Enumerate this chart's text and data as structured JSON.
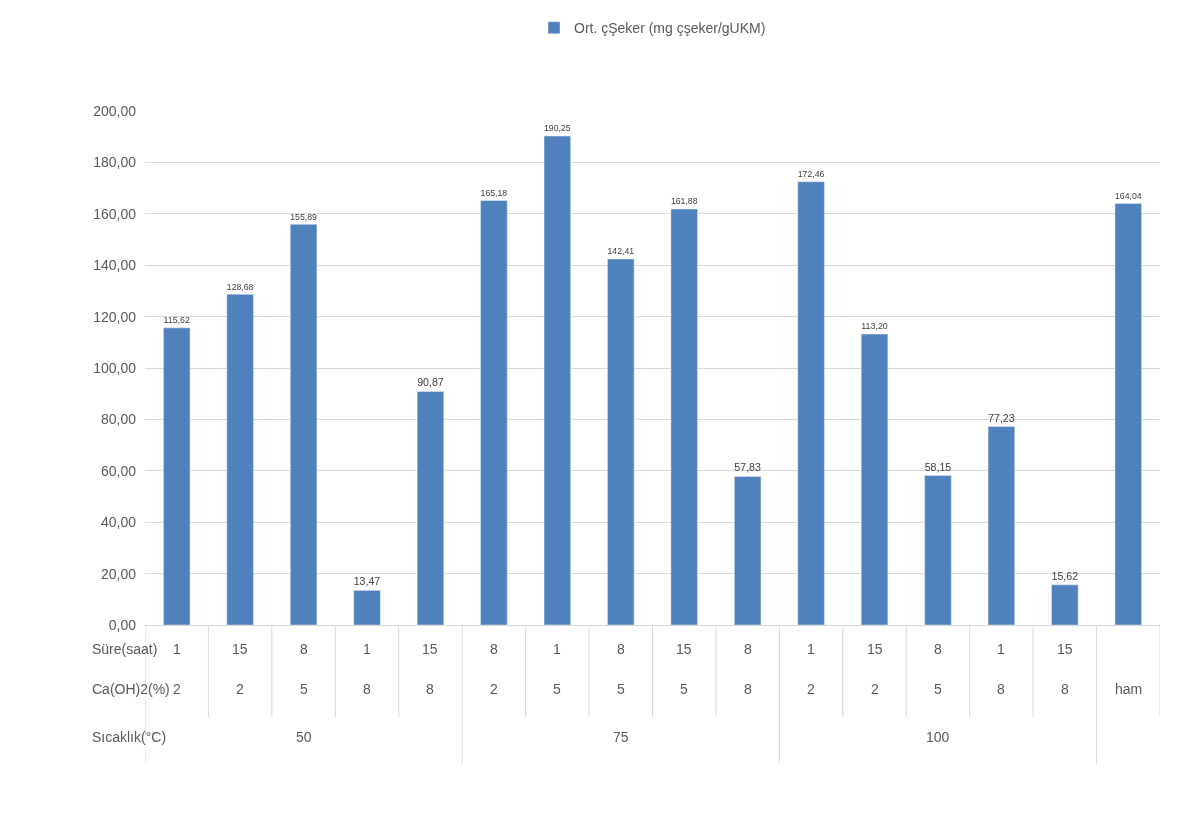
{
  "chart_data": {
    "type": "bar",
    "categories": [
      "2",
      "2",
      "5",
      "8",
      "8",
      "2",
      "5",
      "5",
      "5",
      "8",
      "2",
      "2",
      "5",
      "8",
      "8",
      "ham"
    ],
    "series": [
      {
        "name": "Ort. çŞeker (mg çşeker/gUKM)",
        "color": "#4f81bd",
        "values": [
          115.62,
          128.68,
          155.89,
          13.47,
          90.87,
          165.18,
          190.25,
          142.41,
          161.88,
          57.83,
          172.46,
          113.2,
          58.15,
          77.23,
          15.62,
          164.04
        ],
        "value_labels": [
          "115,62",
          "128,68",
          "155,89",
          "13,47",
          "90,87",
          "165,18",
          "190,25",
          "142,41",
          "161,88",
          "57,83",
          "172,46",
          "113,20",
          "58,15",
          "77,23",
          "15,62",
          "164,04"
        ]
      }
    ],
    "ylim": [
      0,
      200
    ],
    "yticks": [
      {
        "value": 0,
        "label": "0,00"
      },
      {
        "value": 20,
        "label": "20,00"
      },
      {
        "value": 40,
        "label": "40,00"
      },
      {
        "value": 60,
        "label": "60,00"
      },
      {
        "value": 80,
        "label": "80,00"
      },
      {
        "value": 100,
        "label": "100,00"
      },
      {
        "value": 120,
        "label": "120,00"
      },
      {
        "value": 140,
        "label": "140,00"
      },
      {
        "value": 160,
        "label": "160,00"
      },
      {
        "value": 180,
        "label": "180,00"
      },
      {
        "value": 200,
        "label": "200,00"
      }
    ],
    "annotations": [
      "Süre(saat)",
      "Ca(OH)2(%)",
      "Sıcaklık(°C)",
      "1",
      "15",
      "8",
      "1",
      "15",
      "8",
      "1",
      "8",
      "15",
      "8",
      "1",
      "15",
      "8",
      "1",
      "15",
      "50",
      "75",
      "100"
    ],
    "grid": "y",
    "legend": "top"
  }
}
